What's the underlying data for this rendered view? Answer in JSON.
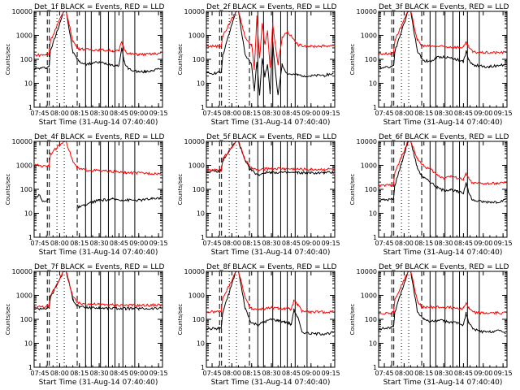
{
  "x_label": "Start Time (31-Aug-14 07:40:40)",
  "y_label": "Counts/sec",
  "x_ticks": [
    "07:45",
    "08:00",
    "08:15",
    "08:30",
    "08:45",
    "09:00",
    "09:15"
  ],
  "y_ticks": [
    "1",
    "10",
    "100",
    "1000",
    "10000"
  ],
  "colors": {
    "events": "#000000",
    "lld": "#ff0000"
  },
  "chart_data": [
    {
      "type": "line",
      "title": "Det_1f  BLACK = Events, RED = LLD",
      "xlim": [
        "07:40:40",
        "09:18:00"
      ],
      "yscale": "log",
      "ylim": [
        1,
        10000
      ],
      "series": [
        {
          "name": "Events",
          "x": [
            "07:41",
            "07:50",
            "07:52",
            "07:53",
            "08:03",
            "08:05",
            "08:10",
            "08:13",
            "08:15",
            "08:20",
            "08:25",
            "08:30",
            "08:40",
            "08:45",
            "08:47",
            "08:49",
            "08:52",
            "09:00",
            "09:05",
            "09:10",
            "09:17"
          ],
          "y": [
            40,
            45,
            50,
            220,
            10000,
            10000,
            200,
            110,
            80,
            60,
            70,
            75,
            60,
            55,
            300,
            80,
            40,
            30,
            30,
            35,
            40
          ]
        },
        {
          "name": "LLD",
          "x": [
            "07:41",
            "07:50",
            "07:52",
            "07:53",
            "08:03",
            "08:05",
            "08:10",
            "08:13",
            "08:15",
            "08:20",
            "08:30",
            "08:40",
            "08:45",
            "08:47",
            "08:49",
            "08:52",
            "09:00",
            "09:10",
            "09:17"
          ],
          "y": [
            150,
            155,
            170,
            600,
            10000,
            10000,
            600,
            320,
            280,
            260,
            250,
            230,
            220,
            550,
            270,
            170,
            160,
            165,
            180
          ]
        }
      ]
    },
    {
      "type": "line",
      "title": "Det_2f  BLACK = Events, RED = LLD",
      "xlim": [
        "07:40:40",
        "09:18:00"
      ],
      "yscale": "log",
      "ylim": [
        1,
        10000
      ],
      "series": [
        {
          "name": "Events",
          "x": [
            "07:41",
            "07:50",
            "07:52",
            "07:53",
            "08:03",
            "08:05",
            "08:10",
            "08:13",
            "08:15",
            "08:17",
            "08:19",
            "08:21",
            "08:23",
            "08:25",
            "08:27",
            "08:29",
            "08:31",
            "08:33",
            "08:35",
            "08:38",
            "08:42",
            "08:50",
            "09:00",
            "09:10",
            "09:17"
          ],
          "y": [
            25,
            28,
            30,
            140,
            10000,
            10000,
            150,
            90,
            60,
            5,
            80,
            3,
            120,
            20,
            60,
            4,
            500,
            30,
            3,
            60,
            25,
            22,
            20,
            22,
            25
          ]
        },
        {
          "name": "LLD",
          "x": [
            "07:41",
            "07:50",
            "07:52",
            "07:53",
            "08:03",
            "08:05",
            "08:10",
            "08:13",
            "08:15",
            "08:17",
            "08:19",
            "08:21",
            "08:23",
            "08:25",
            "08:27",
            "08:29",
            "08:31",
            "08:33",
            "08:35",
            "08:38",
            "08:42",
            "08:50",
            "09:00",
            "09:10",
            "09:17"
          ],
          "y": [
            350,
            360,
            380,
            900,
            10000,
            10000,
            900,
            500,
            400,
            40,
            6000,
            100,
            3000,
            400,
            1500,
            50,
            3000,
            400,
            60,
            800,
            1500,
            400,
            350,
            360,
            380
          ]
        }
      ]
    },
    {
      "type": "line",
      "title": "Det_3f  BLACK = Events, RED = LLD",
      "xlim": [
        "07:40:40",
        "09:18:00"
      ],
      "yscale": "log",
      "ylim": [
        1,
        10000
      ],
      "series": [
        {
          "name": "Events",
          "x": [
            "07:41",
            "07:50",
            "07:52",
            "07:53",
            "08:03",
            "08:05",
            "08:10",
            "08:13",
            "08:15",
            "08:20",
            "08:25",
            "08:30",
            "08:40",
            "08:45",
            "08:47",
            "08:49",
            "08:52",
            "09:00",
            "09:05",
            "09:10",
            "09:17"
          ],
          "y": [
            45,
            50,
            55,
            220,
            10000,
            10000,
            220,
            120,
            90,
            80,
            120,
            130,
            100,
            80,
            220,
            90,
            60,
            50,
            50,
            55,
            60
          ]
        },
        {
          "name": "LLD",
          "x": [
            "07:41",
            "07:50",
            "07:52",
            "07:53",
            "08:03",
            "08:05",
            "08:10",
            "08:13",
            "08:15",
            "08:20",
            "08:30",
            "08:40",
            "08:45",
            "08:47",
            "08:49",
            "08:52",
            "09:00",
            "09:10",
            "09:17"
          ],
          "y": [
            170,
            175,
            190,
            650,
            10000,
            10000,
            650,
            380,
            360,
            350,
            340,
            320,
            320,
            500,
            330,
            200,
            190,
            190,
            200
          ]
        }
      ]
    },
    {
      "type": "line",
      "title": "Det_4f  BLACK = Events, RED = LLD",
      "xlim": [
        "07:40:40",
        "09:18:00"
      ],
      "yscale": "log",
      "ylim": [
        1,
        10000
      ],
      "series": [
        {
          "name": "Events",
          "x": [
            "07:41",
            "07:45",
            "07:47",
            "07:52",
            "07:53",
            "08:10",
            "08:13",
            "08:15",
            "08:20",
            "08:25",
            "08:30",
            "08:40",
            "08:50",
            "09:00",
            "09:10",
            "09:17"
          ],
          "y": [
            50,
            55,
            30,
            40,
            null,
            null,
            20,
            18,
            22,
            30,
            35,
            38,
            36,
            35,
            40,
            45
          ]
        },
        {
          "name": "LLD",
          "x": [
            "07:41",
            "07:45",
            "07:47",
            "07:50",
            "07:52",
            "07:53",
            "08:03",
            "08:05",
            "08:10",
            "08:13",
            "08:15",
            "08:20",
            "08:30",
            "08:40",
            "08:50",
            "09:00",
            "09:10",
            "09:17"
          ],
          "y": [
            1000,
            1000,
            900,
            950,
            1000,
            3000,
            10000,
            10000,
            1500,
            800,
            700,
            650,
            600,
            550,
            500,
            480,
            470,
            450
          ]
        }
      ]
    },
    {
      "type": "line",
      "title": "Det_5f  BLACK = Events, RED = LLD",
      "xlim": [
        "07:40:40",
        "09:18:00"
      ],
      "yscale": "log",
      "ylim": [
        1,
        10000
      ],
      "series": [
        {
          "name": "Events",
          "x": [
            "07:41",
            "07:50",
            "07:52",
            "07:53",
            "08:03",
            "08:05",
            "08:10",
            "08:13",
            "08:15",
            "08:20",
            "08:25",
            "08:30",
            "08:40",
            "08:50",
            "09:00",
            "09:10",
            "09:17"
          ],
          "y": [
            550,
            560,
            580,
            1500,
            10000,
            10000,
            1500,
            800,
            600,
            400,
            500,
            520,
            500,
            490,
            480,
            490,
            500
          ]
        },
        {
          "name": "LLD",
          "x": [
            "07:41",
            "07:50",
            "07:52",
            "07:53",
            "08:03",
            "08:05",
            "08:10",
            "08:13",
            "08:15",
            "08:20",
            "08:25",
            "08:30",
            "08:40",
            "08:50",
            "09:00",
            "09:10",
            "09:17"
          ],
          "y": [
            620,
            630,
            650,
            1800,
            10000,
            10000,
            1800,
            1000,
            750,
            620,
            700,
            750,
            730,
            700,
            680,
            690,
            700
          ]
        }
      ]
    },
    {
      "type": "line",
      "title": "Det_6f  BLACK = Events, RED = LLD",
      "xlim": [
        "07:40:40",
        "09:18:00"
      ],
      "yscale": "log",
      "ylim": [
        1,
        10000
      ],
      "series": [
        {
          "name": "Events",
          "x": [
            "07:41",
            "07:50",
            "07:52",
            "07:53",
            "08:03",
            "08:05",
            "08:10",
            "08:13",
            "08:15",
            "08:20",
            "08:25",
            "08:30",
            "08:35",
            "08:40",
            "08:45",
            "08:47",
            "08:49",
            "08:52",
            "09:00",
            "09:10",
            "09:17"
          ],
          "y": [
            35,
            38,
            40,
            150,
            10000,
            10000,
            800,
            400,
            300,
            200,
            120,
            90,
            100,
            80,
            70,
            200,
            70,
            35,
            30,
            30,
            35
          ]
        },
        {
          "name": "LLD",
          "x": [
            "07:41",
            "07:50",
            "07:52",
            "07:53",
            "08:03",
            "08:05",
            "08:10",
            "08:13",
            "08:15",
            "08:20",
            "08:25",
            "08:30",
            "08:35",
            "08:40",
            "08:45",
            "08:47",
            "08:49",
            "08:52",
            "09:00",
            "09:10",
            "09:17"
          ],
          "y": [
            140,
            150,
            160,
            500,
            10000,
            10000,
            2000,
            1200,
            900,
            700,
            400,
            300,
            350,
            300,
            260,
            450,
            280,
            180,
            170,
            175,
            190
          ]
        }
      ]
    },
    {
      "type": "line",
      "title": "Det_7f  BLACK = Events, RED = LLD",
      "xlim": [
        "07:40:40",
        "09:18:00"
      ],
      "yscale": "log",
      "ylim": [
        1,
        10000
      ],
      "series": [
        {
          "name": "Events",
          "x": [
            "07:41",
            "07:50",
            "07:52",
            "07:53",
            "08:03",
            "08:05",
            "08:10",
            "08:13",
            "08:15",
            "08:20",
            "08:30",
            "08:40",
            "08:50",
            "09:00",
            "09:10",
            "09:17"
          ],
          "y": [
            280,
            290,
            300,
            800,
            10000,
            10000,
            700,
            400,
            330,
            310,
            300,
            290,
            285,
            280,
            285,
            290
          ]
        },
        {
          "name": "LLD",
          "x": [
            "07:41",
            "07:50",
            "07:52",
            "07:53",
            "08:03",
            "08:05",
            "08:10",
            "08:13",
            "08:15",
            "08:20",
            "08:30",
            "08:40",
            "08:50",
            "09:00",
            "09:10",
            "09:17"
          ],
          "y": [
            330,
            340,
            360,
            1000,
            10000,
            10000,
            900,
            520,
            460,
            440,
            420,
            400,
            390,
            380,
            390,
            400
          ]
        }
      ]
    },
    {
      "type": "line",
      "title": "Det_8f  BLACK = Events, RED = LLD",
      "xlim": [
        "07:40:40",
        "09:18:00"
      ],
      "yscale": "log",
      "ylim": [
        1,
        10000
      ],
      "series": [
        {
          "name": "Events",
          "x": [
            "07:41",
            "07:50",
            "07:52",
            "07:53",
            "08:03",
            "08:05",
            "08:10",
            "08:13",
            "08:15",
            "08:20",
            "08:25",
            "08:30",
            "08:35",
            "08:40",
            "08:43",
            "08:45",
            "08:47",
            "08:50",
            "08:53",
            "09:00",
            "09:10",
            "09:17"
          ],
          "y": [
            40,
            42,
            45,
            180,
            10000,
            10000,
            300,
            120,
            70,
            60,
            80,
            100,
            90,
            80,
            70,
            60,
            250,
            120,
            30,
            25,
            25,
            28
          ]
        },
        {
          "name": "LLD",
          "x": [
            "07:41",
            "07:50",
            "07:52",
            "07:53",
            "08:03",
            "08:05",
            "08:10",
            "08:13",
            "08:15",
            "08:20",
            "08:25",
            "08:30",
            "08:35",
            "08:40",
            "08:43",
            "08:45",
            "08:47",
            "08:50",
            "08:53",
            "09:00",
            "09:10",
            "09:17"
          ],
          "y": [
            200,
            210,
            220,
            700,
            10000,
            10000,
            900,
            350,
            280,
            260,
            280,
            300,
            290,
            280,
            270,
            260,
            600,
            400,
            220,
            200,
            200,
            210
          ]
        }
      ]
    },
    {
      "type": "line",
      "title": "Det_9f  BLACK = Events, RED = LLD",
      "xlim": [
        "07:40:40",
        "09:18:00"
      ],
      "yscale": "log",
      "ylim": [
        1,
        10000
      ],
      "series": [
        {
          "name": "Events",
          "x": [
            "07:41",
            "07:50",
            "07:52",
            "07:53",
            "08:03",
            "08:05",
            "08:10",
            "08:13",
            "08:15",
            "08:20",
            "08:25",
            "08:30",
            "08:40",
            "08:45",
            "08:47",
            "08:49",
            "08:52",
            "09:00",
            "09:05",
            "09:10",
            "09:17"
          ],
          "y": [
            40,
            45,
            50,
            200,
            10000,
            10000,
            220,
            130,
            100,
            80,
            90,
            85,
            70,
            60,
            180,
            70,
            40,
            30,
            30,
            35,
            28
          ]
        },
        {
          "name": "LLD",
          "x": [
            "07:41",
            "07:50",
            "07:52",
            "07:53",
            "08:03",
            "08:05",
            "08:10",
            "08:13",
            "08:15",
            "08:20",
            "08:30",
            "08:40",
            "08:45",
            "08:47",
            "08:49",
            "08:52",
            "09:00",
            "09:10",
            "09:17"
          ],
          "y": [
            180,
            185,
            200,
            650,
            10000,
            10000,
            600,
            350,
            330,
            320,
            320,
            300,
            290,
            480,
            300,
            200,
            180,
            185,
            190
          ]
        }
      ]
    }
  ]
}
